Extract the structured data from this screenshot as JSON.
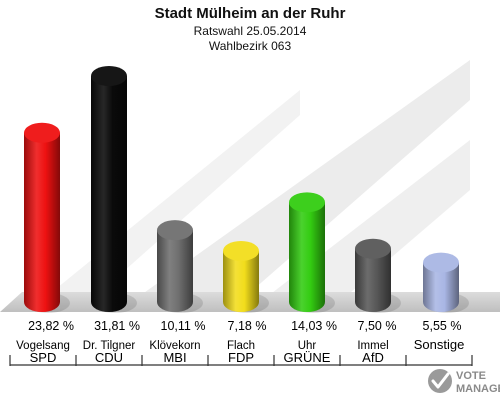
{
  "chart_data": {
    "type": "bar",
    "title": "Stadt Mülheim an der Ruhr",
    "subtitle_lines": [
      "Ratswahl 25.05.2014",
      "Wahlbezirk 063"
    ],
    "categories": [
      "SPD",
      "CDU",
      "MBI",
      "FDP",
      "GRÜNE",
      "AfD",
      "Sonstige"
    ],
    "candidates": [
      "Vogelsang",
      "Dr. Tilgner",
      "Klövekorn",
      "Flach",
      "Uhr",
      "Immel",
      ""
    ],
    "values": [
      23.82,
      31.81,
      10.11,
      7.18,
      14.03,
      7.5,
      5.55
    ],
    "value_labels": [
      "23,82 %",
      "31,81 %",
      "10,11 %",
      "7,18 %",
      "14,03 %",
      "7,50 %",
      "5,55 %"
    ],
    "colors": [
      "#ee1111",
      "#0a0a0a",
      "#6f6f6f",
      "#f2dd1c",
      "#33cc11",
      "#585858",
      "#a9b6e4"
    ],
    "ylim": [
      0,
      31.81
    ],
    "grid": false,
    "legend": "none"
  },
  "logo": {
    "line1": "VOTE",
    "line2": "MANAGER"
  }
}
